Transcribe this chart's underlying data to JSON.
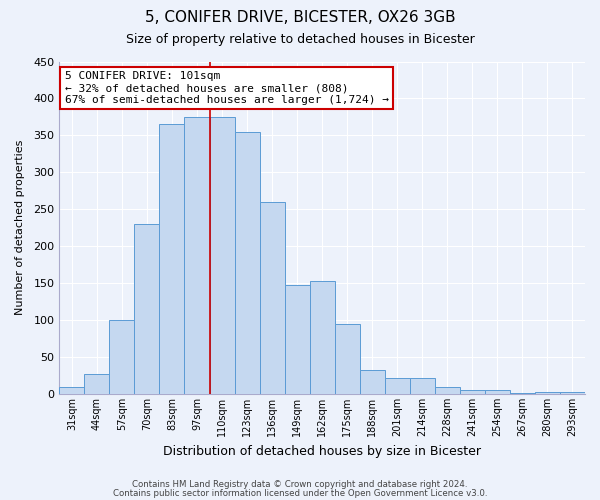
{
  "title": "5, CONIFER DRIVE, BICESTER, OX26 3GB",
  "subtitle": "Size of property relative to detached houses in Bicester",
  "xlabel": "Distribution of detached houses by size in Bicester",
  "ylabel": "Number of detached properties",
  "bar_labels": [
    "31sqm",
    "44sqm",
    "57sqm",
    "70sqm",
    "83sqm",
    "97sqm",
    "110sqm",
    "123sqm",
    "136sqm",
    "149sqm",
    "162sqm",
    "175sqm",
    "188sqm",
    "201sqm",
    "214sqm",
    "228sqm",
    "241sqm",
    "254sqm",
    "267sqm",
    "280sqm",
    "293sqm"
  ],
  "bar_values": [
    10,
    27,
    100,
    230,
    365,
    375,
    375,
    355,
    260,
    147,
    153,
    95,
    33,
    21,
    22,
    10,
    5,
    5,
    1,
    3,
    3
  ],
  "bar_color": "#c5d8f0",
  "bar_edge_color": "#5b9bd5",
  "ylim": [
    0,
    450
  ],
  "yticks": [
    0,
    50,
    100,
    150,
    200,
    250,
    300,
    350,
    400,
    450
  ],
  "vline_x_index": 5,
  "vline_color": "#cc0000",
  "annotation_title": "5 CONIFER DRIVE: 101sqm",
  "annotation_line1": "← 32% of detached houses are smaller (808)",
  "annotation_line2": "67% of semi-detached houses are larger (1,724) →",
  "annotation_box_color": "#ffffff",
  "annotation_box_edge": "#cc0000",
  "footer1": "Contains HM Land Registry data © Crown copyright and database right 2024.",
  "footer2": "Contains public sector information licensed under the Open Government Licence v3.0.",
  "background_color": "#edf2fb",
  "plot_background": "#edf2fb",
  "grid_color": "#ffffff",
  "spine_color": "#aaaacc"
}
